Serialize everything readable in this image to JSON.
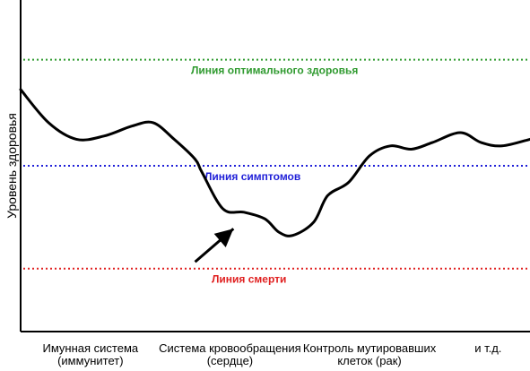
{
  "chart_data": {
    "type": "line",
    "title": "",
    "ylabel": "Уровень здоровья",
    "xlabel": "",
    "ylim": [
      0,
      100
    ],
    "categories": [
      {
        "line1": "Имунная система",
        "line2": "(иммунитет)",
        "x": 1
      },
      {
        "line1": "Система кровообращения",
        "line2": "(сердце)",
        "x": 3
      },
      {
        "line1": "Контроль мутировавших",
        "line2": "клеток (рак)",
        "x": 5
      },
      {
        "line1": "и т.д.",
        "line2": "",
        "x": 6.7
      }
    ],
    "xlim": [
      0,
      7.3
    ],
    "reference_lines": [
      {
        "label": "Линия оптимального здоровья",
        "y": 82,
        "color": "#2f9a2f"
      },
      {
        "label": "Линия симптомов",
        "y": 50,
        "color": "#1f1fd8"
      },
      {
        "label": "Линия смерти",
        "y": 19,
        "color": "#e02020"
      }
    ],
    "series": [
      {
        "color": "#000000",
        "x": [
          0,
          0.4,
          0.8,
          1.2,
          1.6,
          1.9,
          2.2,
          2.5,
          2.6,
          2.9,
          3.2,
          3.5,
          3.7,
          3.9,
          4.2,
          4.4,
          4.7,
          5.0,
          5.3,
          5.6,
          5.9,
          6.3,
          6.6,
          6.9,
          7.3
        ],
        "y": [
          73,
          63,
          58,
          59,
          62,
          63,
          58,
          52,
          48,
          37,
          36,
          34,
          30,
          29,
          33,
          41,
          45,
          53,
          56,
          55,
          57,
          60,
          57,
          56,
          58
        ]
      }
    ],
    "annotation_arrow": {
      "from": [
        2.5,
        21
      ],
      "to": [
        3.05,
        31
      ]
    }
  }
}
